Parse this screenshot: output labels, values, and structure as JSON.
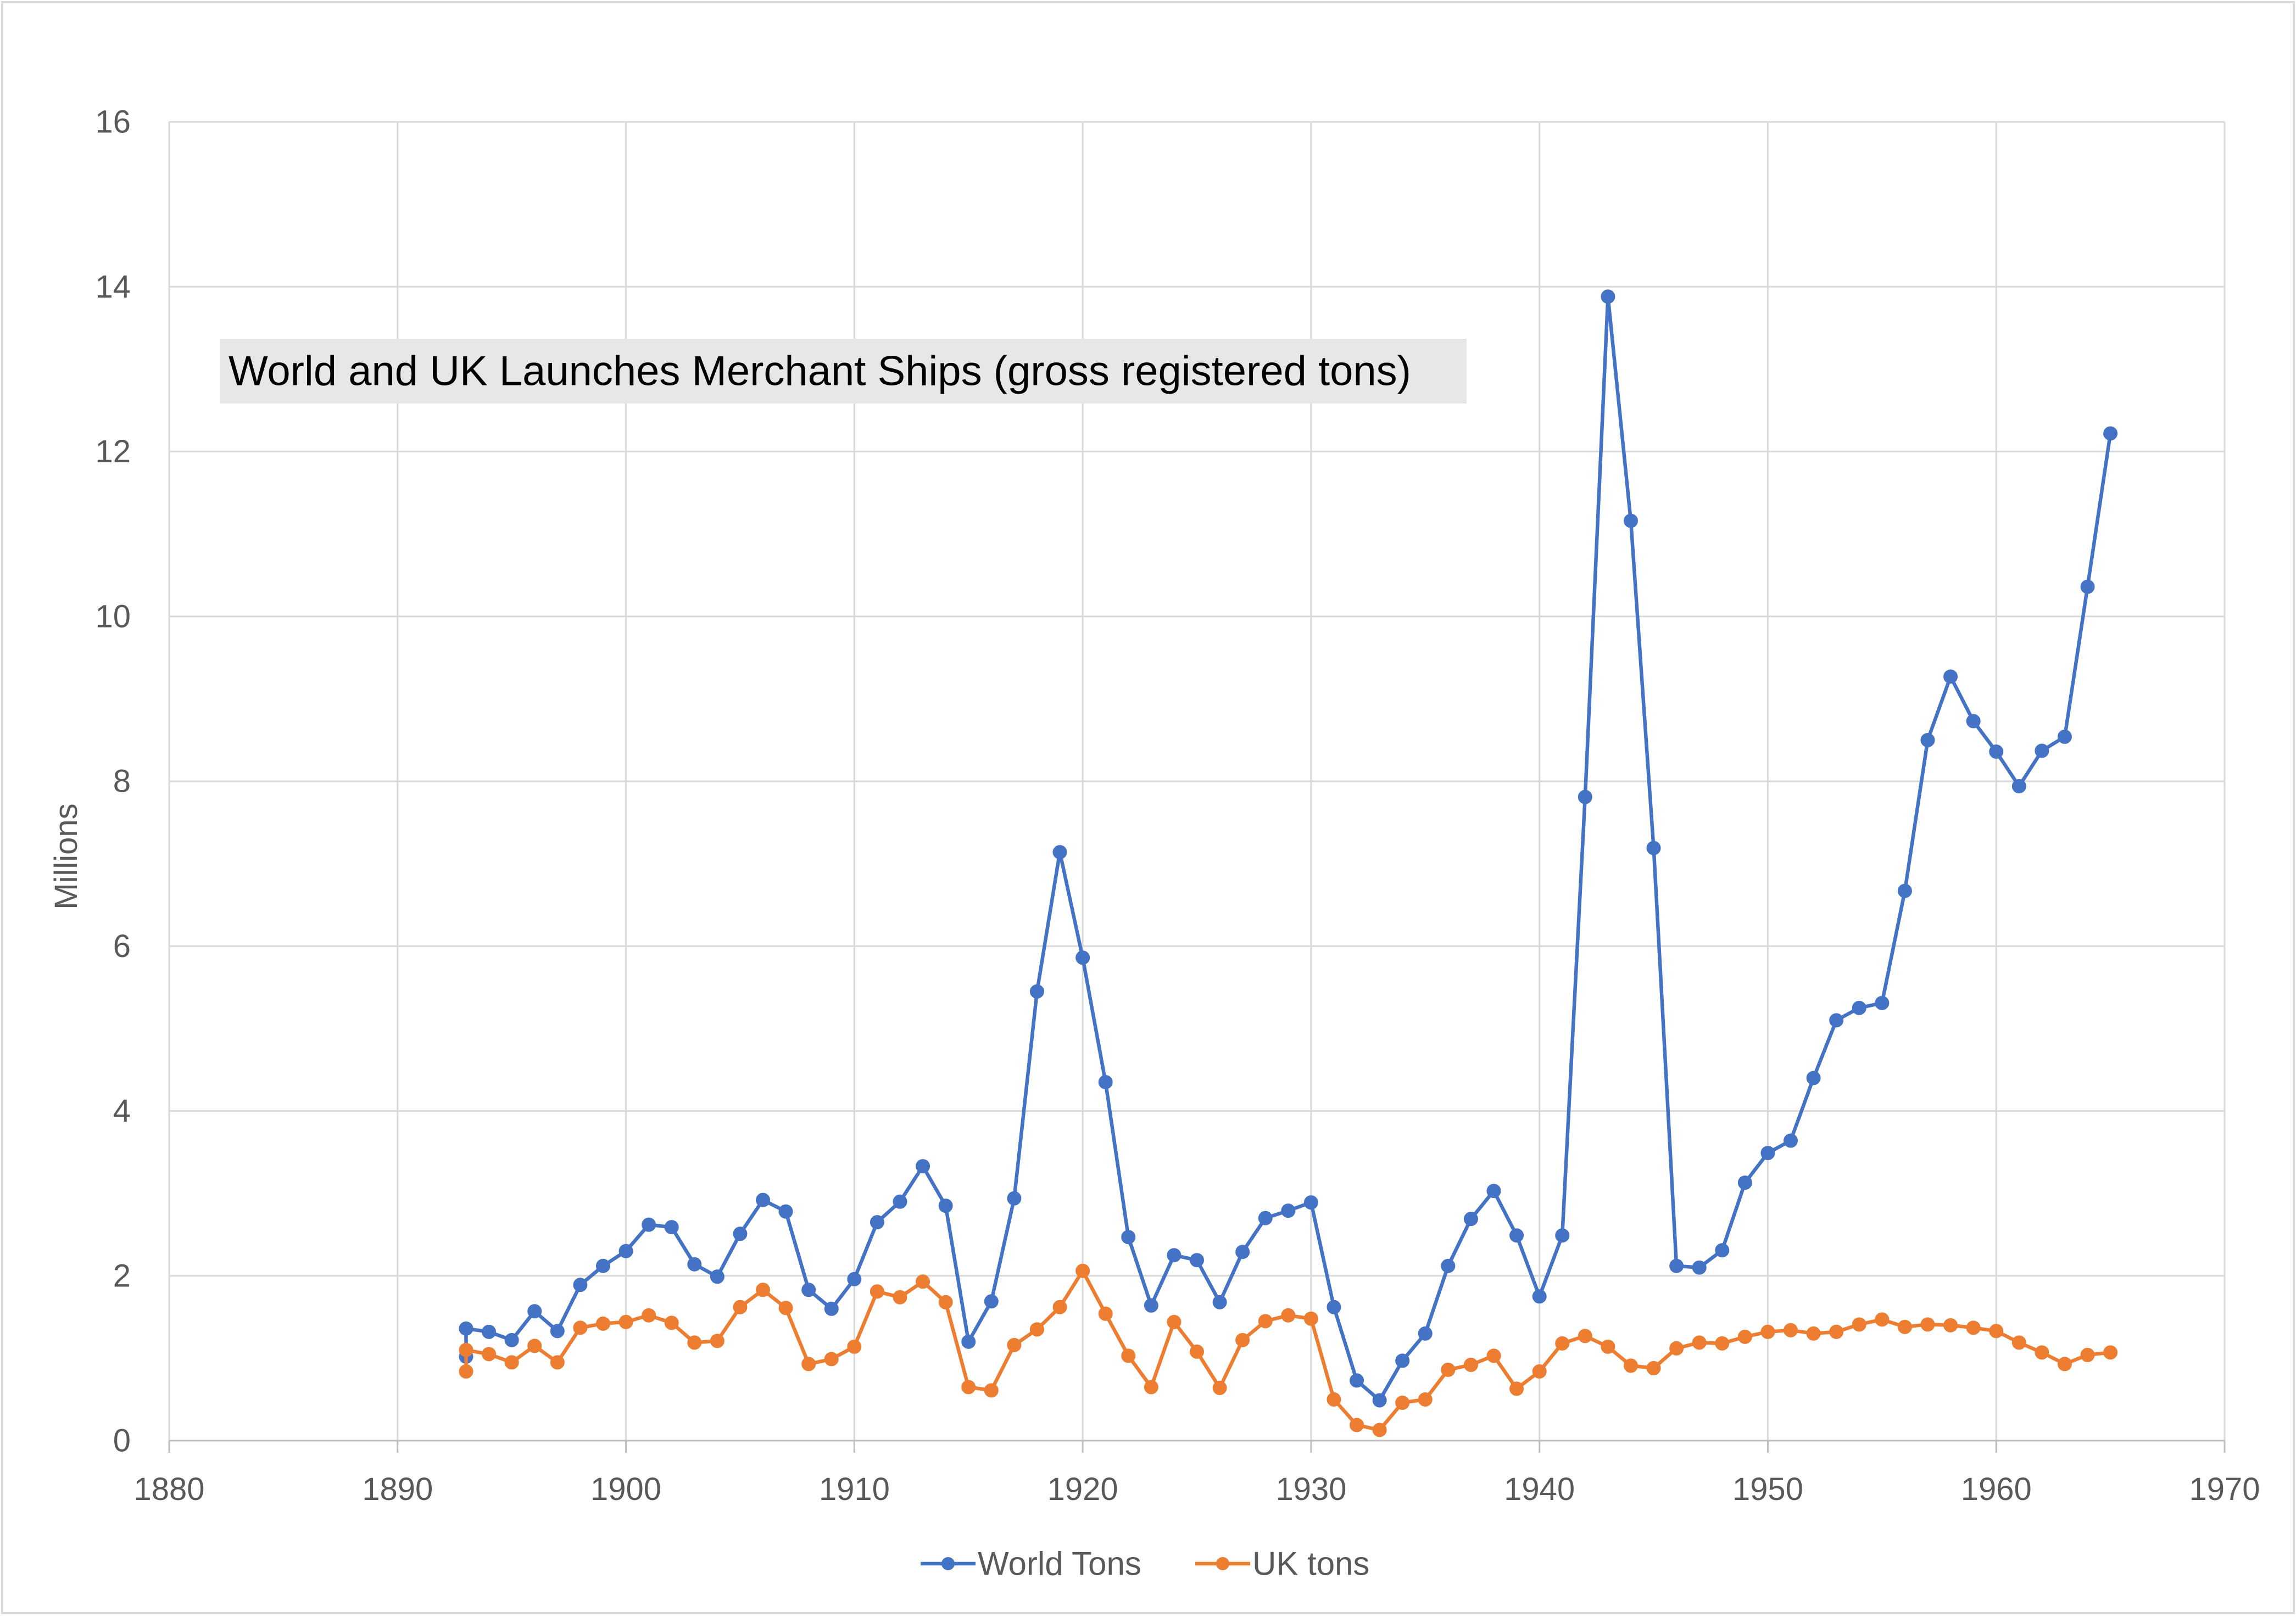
{
  "chart_data": {
    "type": "line",
    "title": "World and UK Launches Merchant Ships (gross registered tons)",
    "xlabel": "",
    "ylabel": "Millions",
    "xlim": [
      1880,
      1970
    ],
    "ylim": [
      0,
      16
    ],
    "x_ticks": [
      "1880",
      "1890",
      "1900",
      "1910",
      "1920",
      "1930",
      "1940",
      "1950",
      "1960",
      "1970"
    ],
    "y_ticks": [
      "0",
      "2",
      "4",
      "6",
      "8",
      "10",
      "12",
      "14",
      "16"
    ],
    "grid": true,
    "legend_position": "bottom",
    "x": [
      1893,
      1894,
      1895,
      1896,
      1897,
      1898,
      1899,
      1900,
      1901,
      1902,
      1903,
      1904,
      1905,
      1906,
      1907,
      1908,
      1909,
      1910,
      1911,
      1912,
      1913,
      1914,
      1915,
      1916,
      1917,
      1918,
      1919,
      1920,
      1921,
      1922,
      1923,
      1924,
      1925,
      1926,
      1927,
      1928,
      1929,
      1930,
      1931,
      1932,
      1933,
      1934,
      1935,
      1936,
      1937,
      1938,
      1939,
      1940,
      1941,
      1942,
      1943,
      1944,
      1945,
      1946,
      1947,
      1948,
      1949,
      1950,
      1951,
      1952,
      1953,
      1954,
      1955,
      1956,
      1957,
      1958,
      1959,
      1960,
      1961,
      1962,
      1963,
      1964,
      1965
    ],
    "series": [
      {
        "name": "World Tons",
        "color": "#4472C4",
        "first_point_extra": 1.02,
        "values": [
          1.36,
          1.32,
          1.22,
          1.57,
          1.33,
          1.89,
          2.12,
          2.3,
          2.62,
          2.59,
          2.14,
          1.99,
          2.51,
          2.92,
          2.78,
          1.83,
          1.6,
          1.96,
          2.65,
          2.9,
          3.33,
          2.85,
          1.2,
          1.69,
          2.94,
          5.45,
          7.14,
          5.86,
          4.35,
          2.47,
          1.64,
          2.25,
          2.19,
          1.68,
          2.29,
          2.7,
          2.79,
          2.89,
          1.62,
          0.73,
          0.49,
          0.97,
          1.3,
          2.12,
          2.69,
          3.03,
          2.49,
          1.75,
          2.49,
          7.81,
          13.88,
          11.16,
          7.19,
          2.12,
          2.1,
          2.31,
          3.13,
          3.49,
          3.64,
          4.4,
          5.1,
          5.25,
          5.31,
          6.67,
          8.5,
          9.27,
          8.73,
          8.36,
          7.94,
          8.37,
          8.54,
          10.36,
          12.22
        ]
      },
      {
        "name": "UK tons",
        "color": "#ED7D31",
        "first_point_extra": 0.84,
        "values": [
          1.1,
          1.05,
          0.95,
          1.15,
          0.95,
          1.37,
          1.42,
          1.44,
          1.52,
          1.43,
          1.19,
          1.21,
          1.62,
          1.83,
          1.61,
          0.93,
          0.99,
          1.14,
          1.81,
          1.74,
          1.93,
          1.68,
          0.65,
          0.61,
          1.16,
          1.35,
          1.62,
          2.06,
          1.54,
          1.03,
          0.65,
          1.44,
          1.08,
          0.64,
          1.22,
          1.45,
          1.52,
          1.48,
          0.5,
          0.19,
          0.13,
          0.46,
          0.5,
          0.86,
          0.92,
          1.03,
          0.63,
          0.84,
          1.18,
          1.27,
          1.14,
          0.91,
          0.88,
          1.12,
          1.19,
          1.18,
          1.26,
          1.32,
          1.34,
          1.3,
          1.32,
          1.41,
          1.47,
          1.38,
          1.41,
          1.4,
          1.37,
          1.33,
          1.19,
          1.07,
          0.93,
          1.04,
          1.07
        ]
      }
    ]
  }
}
